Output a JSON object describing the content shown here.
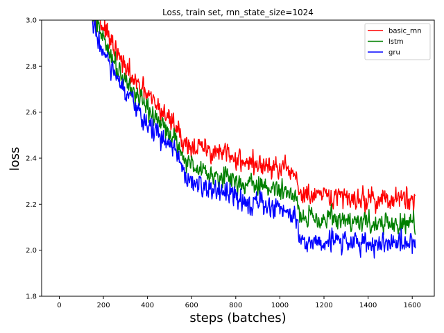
{
  "chart_data": {
    "type": "line",
    "title": "Loss, train set, rnn_state_size=1024",
    "xlabel": "steps (batches)",
    "ylabel": "loss",
    "xlim": [
      -80,
      1700
    ],
    "ylim": [
      1.8,
      3.0
    ],
    "x_ticks": [
      0,
      200,
      400,
      600,
      800,
      1000,
      1200,
      1400,
      1600
    ],
    "x_tick_labels": [
      "0",
      "200",
      "400",
      "600",
      "800",
      "1000",
      "1200",
      "1400",
      "1600"
    ],
    "y_ticks": [
      1.8,
      2.0,
      2.2,
      2.4,
      2.6,
      2.8,
      3.0
    ],
    "y_tick_labels": [
      "1.8",
      "2.0",
      "2.2",
      "2.4",
      "2.6",
      "2.8",
      "3.0"
    ],
    "grid": false,
    "legend_position": "top-right",
    "series": [
      {
        "name": "basic_rnn",
        "color": "#ff0000",
        "noise": 0.032,
        "x": [
          150,
          200,
          250,
          300,
          350,
          400,
          450,
          500,
          540,
          560,
          600,
          700,
          800,
          900,
          1000,
          1075,
          1090,
          1200,
          1300,
          1400,
          1500,
          1615
        ],
        "y": [
          3.05,
          2.97,
          2.87,
          2.79,
          2.72,
          2.67,
          2.62,
          2.57,
          2.53,
          2.47,
          2.45,
          2.43,
          2.4,
          2.37,
          2.35,
          2.33,
          2.24,
          2.23,
          2.23,
          2.22,
          2.22,
          2.22
        ]
      },
      {
        "name": "lstm",
        "color": "#008000",
        "noise": 0.03,
        "x": [
          150,
          200,
          250,
          300,
          350,
          400,
          450,
          500,
          540,
          560,
          600,
          700,
          800,
          900,
          1000,
          1075,
          1090,
          1200,
          1300,
          1400,
          1500,
          1615
        ],
        "y": [
          3.02,
          2.92,
          2.82,
          2.74,
          2.67,
          2.61,
          2.56,
          2.51,
          2.47,
          2.4,
          2.37,
          2.33,
          2.3,
          2.28,
          2.26,
          2.24,
          2.15,
          2.14,
          2.13,
          2.12,
          2.11,
          2.11
        ]
      },
      {
        "name": "gru",
        "color": "#0000ff",
        "noise": 0.032,
        "x": [
          150,
          200,
          250,
          300,
          350,
          400,
          450,
          500,
          540,
          560,
          600,
          700,
          800,
          900,
          1000,
          1075,
          1090,
          1200,
          1300,
          1400,
          1500,
          1615
        ],
        "y": [
          2.98,
          2.86,
          2.76,
          2.68,
          2.61,
          2.55,
          2.5,
          2.45,
          2.41,
          2.32,
          2.29,
          2.26,
          2.23,
          2.2,
          2.18,
          2.16,
          2.04,
          2.04,
          2.04,
          2.03,
          2.03,
          2.03
        ]
      }
    ]
  }
}
